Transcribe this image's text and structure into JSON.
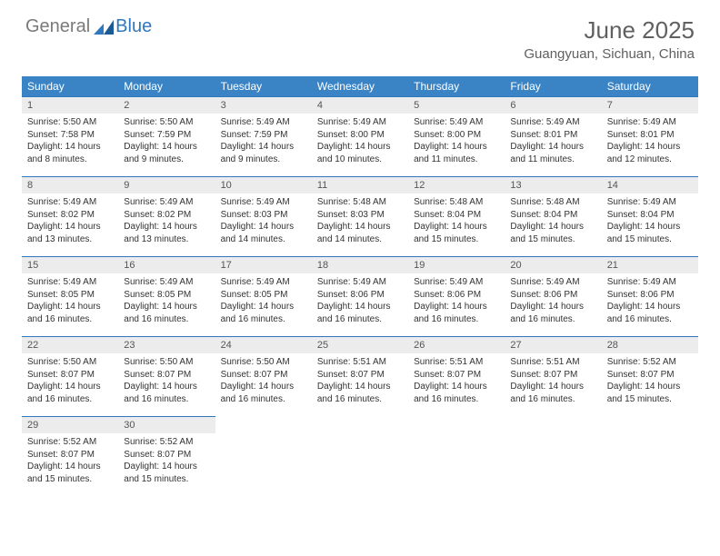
{
  "brand": {
    "part1": "General",
    "part2": "Blue"
  },
  "title": "June 2025",
  "location": "Guangyuan, Sichuan, China",
  "colors": {
    "header_bg": "#3a84c5",
    "daynum_bg": "#ececec",
    "border": "#2f78bd",
    "text": "#333333",
    "muted": "#606060"
  },
  "weekdays": [
    "Sunday",
    "Monday",
    "Tuesday",
    "Wednesday",
    "Thursday",
    "Friday",
    "Saturday"
  ],
  "days": {
    "d1": {
      "n": "1",
      "sr": "Sunrise: 5:50 AM",
      "ss": "Sunset: 7:58 PM",
      "dl1": "Daylight: 14 hours",
      "dl2": "and 8 minutes."
    },
    "d2": {
      "n": "2",
      "sr": "Sunrise: 5:50 AM",
      "ss": "Sunset: 7:59 PM",
      "dl1": "Daylight: 14 hours",
      "dl2": "and 9 minutes."
    },
    "d3": {
      "n": "3",
      "sr": "Sunrise: 5:49 AM",
      "ss": "Sunset: 7:59 PM",
      "dl1": "Daylight: 14 hours",
      "dl2": "and 9 minutes."
    },
    "d4": {
      "n": "4",
      "sr": "Sunrise: 5:49 AM",
      "ss": "Sunset: 8:00 PM",
      "dl1": "Daylight: 14 hours",
      "dl2": "and 10 minutes."
    },
    "d5": {
      "n": "5",
      "sr": "Sunrise: 5:49 AM",
      "ss": "Sunset: 8:00 PM",
      "dl1": "Daylight: 14 hours",
      "dl2": "and 11 minutes."
    },
    "d6": {
      "n": "6",
      "sr": "Sunrise: 5:49 AM",
      "ss": "Sunset: 8:01 PM",
      "dl1": "Daylight: 14 hours",
      "dl2": "and 11 minutes."
    },
    "d7": {
      "n": "7",
      "sr": "Sunrise: 5:49 AM",
      "ss": "Sunset: 8:01 PM",
      "dl1": "Daylight: 14 hours",
      "dl2": "and 12 minutes."
    },
    "d8": {
      "n": "8",
      "sr": "Sunrise: 5:49 AM",
      "ss": "Sunset: 8:02 PM",
      "dl1": "Daylight: 14 hours",
      "dl2": "and 13 minutes."
    },
    "d9": {
      "n": "9",
      "sr": "Sunrise: 5:49 AM",
      "ss": "Sunset: 8:02 PM",
      "dl1": "Daylight: 14 hours",
      "dl2": "and 13 minutes."
    },
    "d10": {
      "n": "10",
      "sr": "Sunrise: 5:49 AM",
      "ss": "Sunset: 8:03 PM",
      "dl1": "Daylight: 14 hours",
      "dl2": "and 14 minutes."
    },
    "d11": {
      "n": "11",
      "sr": "Sunrise: 5:48 AM",
      "ss": "Sunset: 8:03 PM",
      "dl1": "Daylight: 14 hours",
      "dl2": "and 14 minutes."
    },
    "d12": {
      "n": "12",
      "sr": "Sunrise: 5:48 AM",
      "ss": "Sunset: 8:04 PM",
      "dl1": "Daylight: 14 hours",
      "dl2": "and 15 minutes."
    },
    "d13": {
      "n": "13",
      "sr": "Sunrise: 5:48 AM",
      "ss": "Sunset: 8:04 PM",
      "dl1": "Daylight: 14 hours",
      "dl2": "and 15 minutes."
    },
    "d14": {
      "n": "14",
      "sr": "Sunrise: 5:49 AM",
      "ss": "Sunset: 8:04 PM",
      "dl1": "Daylight: 14 hours",
      "dl2": "and 15 minutes."
    },
    "d15": {
      "n": "15",
      "sr": "Sunrise: 5:49 AM",
      "ss": "Sunset: 8:05 PM",
      "dl1": "Daylight: 14 hours",
      "dl2": "and 16 minutes."
    },
    "d16": {
      "n": "16",
      "sr": "Sunrise: 5:49 AM",
      "ss": "Sunset: 8:05 PM",
      "dl1": "Daylight: 14 hours",
      "dl2": "and 16 minutes."
    },
    "d17": {
      "n": "17",
      "sr": "Sunrise: 5:49 AM",
      "ss": "Sunset: 8:05 PM",
      "dl1": "Daylight: 14 hours",
      "dl2": "and 16 minutes."
    },
    "d18": {
      "n": "18",
      "sr": "Sunrise: 5:49 AM",
      "ss": "Sunset: 8:06 PM",
      "dl1": "Daylight: 14 hours",
      "dl2": "and 16 minutes."
    },
    "d19": {
      "n": "19",
      "sr": "Sunrise: 5:49 AM",
      "ss": "Sunset: 8:06 PM",
      "dl1": "Daylight: 14 hours",
      "dl2": "and 16 minutes."
    },
    "d20": {
      "n": "20",
      "sr": "Sunrise: 5:49 AM",
      "ss": "Sunset: 8:06 PM",
      "dl1": "Daylight: 14 hours",
      "dl2": "and 16 minutes."
    },
    "d21": {
      "n": "21",
      "sr": "Sunrise: 5:49 AM",
      "ss": "Sunset: 8:06 PM",
      "dl1": "Daylight: 14 hours",
      "dl2": "and 16 minutes."
    },
    "d22": {
      "n": "22",
      "sr": "Sunrise: 5:50 AM",
      "ss": "Sunset: 8:07 PM",
      "dl1": "Daylight: 14 hours",
      "dl2": "and 16 minutes."
    },
    "d23": {
      "n": "23",
      "sr": "Sunrise: 5:50 AM",
      "ss": "Sunset: 8:07 PM",
      "dl1": "Daylight: 14 hours",
      "dl2": "and 16 minutes."
    },
    "d24": {
      "n": "24",
      "sr": "Sunrise: 5:50 AM",
      "ss": "Sunset: 8:07 PM",
      "dl1": "Daylight: 14 hours",
      "dl2": "and 16 minutes."
    },
    "d25": {
      "n": "25",
      "sr": "Sunrise: 5:51 AM",
      "ss": "Sunset: 8:07 PM",
      "dl1": "Daylight: 14 hours",
      "dl2": "and 16 minutes."
    },
    "d26": {
      "n": "26",
      "sr": "Sunrise: 5:51 AM",
      "ss": "Sunset: 8:07 PM",
      "dl1": "Daylight: 14 hours",
      "dl2": "and 16 minutes."
    },
    "d27": {
      "n": "27",
      "sr": "Sunrise: 5:51 AM",
      "ss": "Sunset: 8:07 PM",
      "dl1": "Daylight: 14 hours",
      "dl2": "and 16 minutes."
    },
    "d28": {
      "n": "28",
      "sr": "Sunrise: 5:52 AM",
      "ss": "Sunset: 8:07 PM",
      "dl1": "Daylight: 14 hours",
      "dl2": "and 15 minutes."
    },
    "d29": {
      "n": "29",
      "sr": "Sunrise: 5:52 AM",
      "ss": "Sunset: 8:07 PM",
      "dl1": "Daylight: 14 hours",
      "dl2": "and 15 minutes."
    },
    "d30": {
      "n": "30",
      "sr": "Sunrise: 5:52 AM",
      "ss": "Sunset: 8:07 PM",
      "dl1": "Daylight: 14 hours",
      "dl2": "and 15 minutes."
    }
  }
}
